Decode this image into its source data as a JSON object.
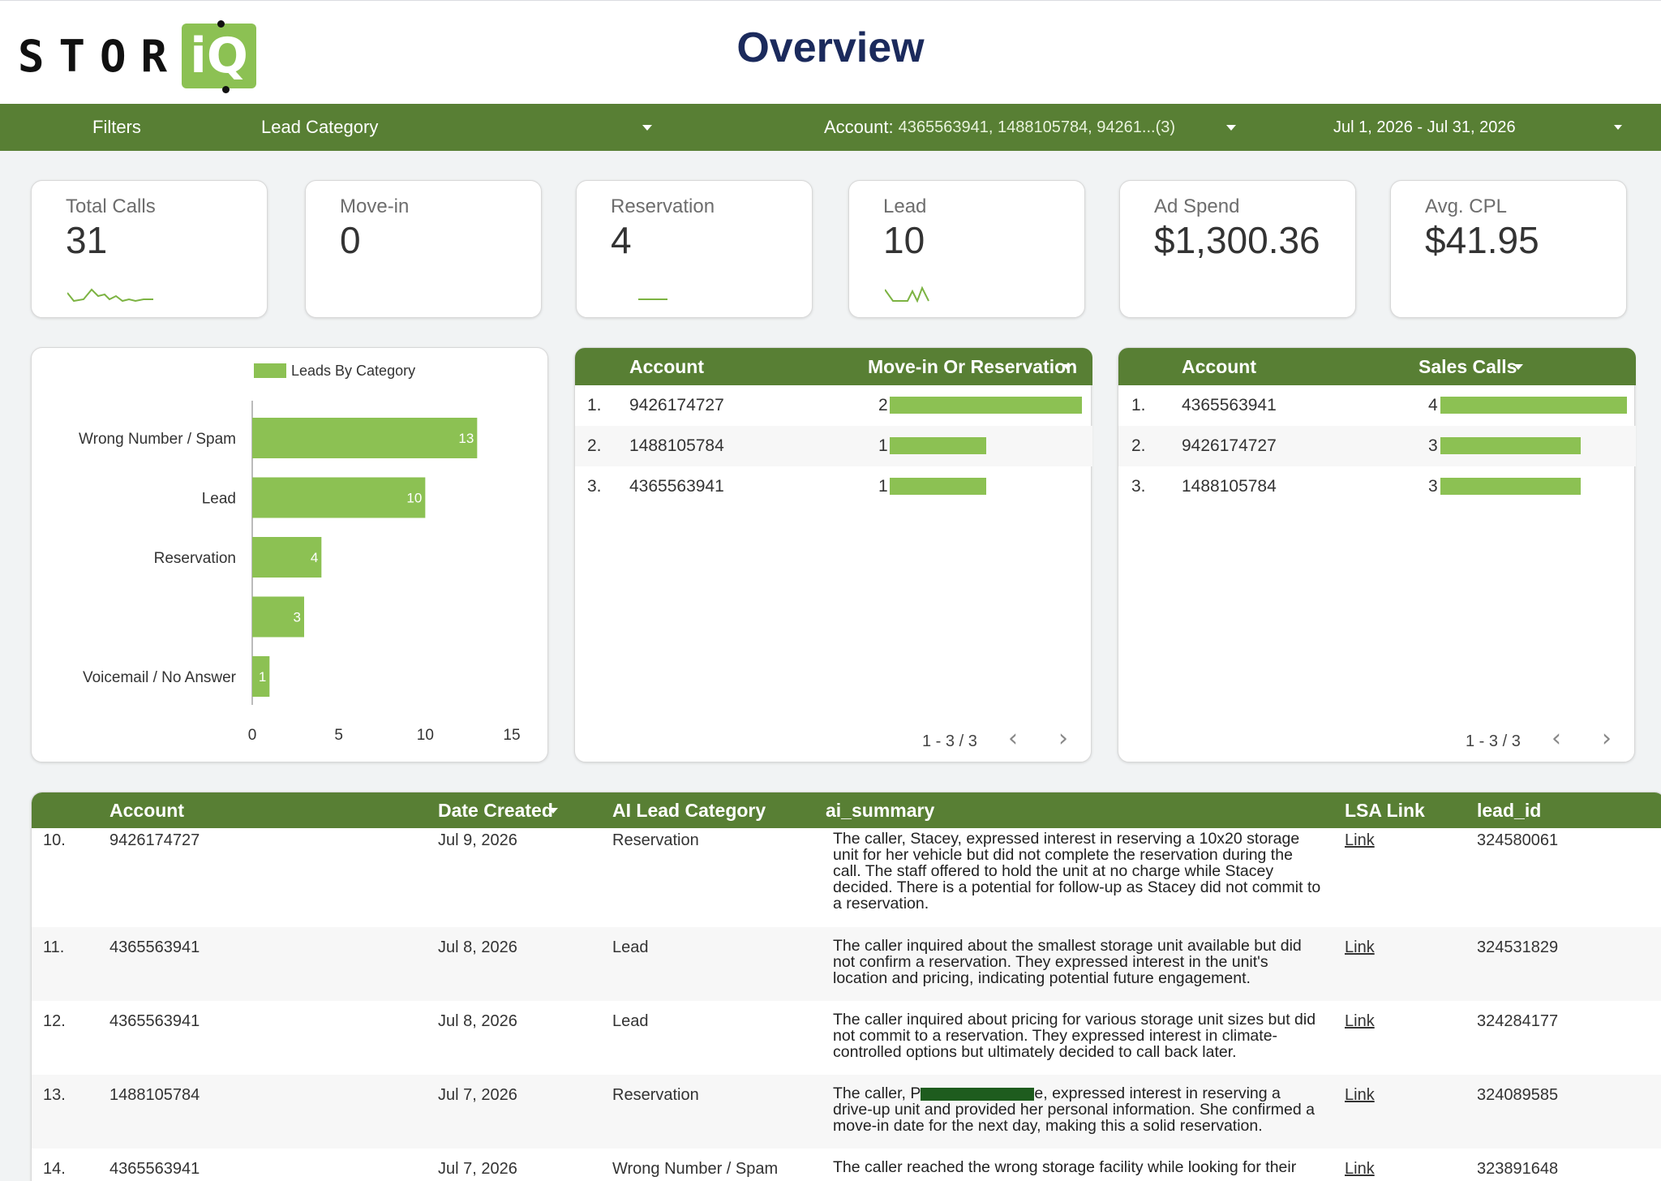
{
  "header": {
    "logo_text": "STOR",
    "logo_badge": "iQ",
    "title": "Overview"
  },
  "filters": {
    "label": "Filters",
    "category_label": "Lead Category",
    "account_label": "Account:",
    "account_value": "4365563941, 1488105784, 94261...(3)",
    "date_range": "Jul 1, 2026 - Jul 31, 2026"
  },
  "kpis": [
    {
      "label": "Total Calls",
      "value": "31"
    },
    {
      "label": "Move-in",
      "value": "0"
    },
    {
      "label": "Reservation",
      "value": "4"
    },
    {
      "label": "Lead",
      "value": "10"
    },
    {
      "label": "Ad Spend",
      "value": "$1,300.36"
    },
    {
      "label": "Avg. CPL",
      "value": "$41.95"
    }
  ],
  "colors": {
    "brand_green": "#587f34",
    "bar_green": "#8cc153",
    "title_navy": "#1b2a5c",
    "redaction": "#1e5c1e"
  },
  "chart_data": {
    "type": "bar",
    "orientation": "horizontal",
    "legend": "Leads By Category",
    "legend_position": "top",
    "categories": [
      "Wrong Number / Spam",
      "Lead",
      "Reservation",
      "",
      "Voicemail / No Answer"
    ],
    "values": [
      13,
      10,
      4,
      3,
      1
    ],
    "xlim": [
      0,
      15
    ],
    "xticks": [
      "0",
      "5",
      "10",
      "15"
    ],
    "grid": false
  },
  "move_in_table": {
    "col_account": "Account",
    "col_metric": "Move-in Or Reservation",
    "rows": [
      {
        "idx": "1.",
        "account": "9426174727",
        "value": "2",
        "fraction": 1.0
      },
      {
        "idx": "2.",
        "account": "1488105784",
        "value": "1",
        "fraction": 0.5
      },
      {
        "idx": "3.",
        "account": "4365563941",
        "value": "1",
        "fraction": 0.5
      }
    ],
    "pager": "1 - 3 / 3"
  },
  "sales_table": {
    "col_account": "Account",
    "col_metric": "Sales Calls",
    "rows": [
      {
        "idx": "1.",
        "account": "4365563941",
        "value": "4",
        "fraction": 1.0
      },
      {
        "idx": "2.",
        "account": "9426174727",
        "value": "3",
        "fraction": 0.75
      },
      {
        "idx": "3.",
        "account": "1488105784",
        "value": "3",
        "fraction": 0.75
      }
    ],
    "pager": "1 - 3 / 3"
  },
  "leads_table": {
    "columns": {
      "account": "Account",
      "date": "Date Created",
      "category": "AI Lead Category",
      "summary": "ai_summary",
      "lsa": "LSA Link",
      "lead_id": "lead_id"
    },
    "rows": [
      {
        "idx": "10.",
        "account": "9426174727",
        "date": "Jul 9, 2026",
        "category": "Reservation",
        "summary": "The caller, Stacey, expressed interest in reserving a 10x20 storage unit for her vehicle but did not complete the reservation during the call. The staff offered to hold the unit at no charge while Stacey decided. There is a potential for follow-up as Stacey did not commit to a reservation.",
        "lsa": "Link",
        "lead_id": "324580061"
      },
      {
        "idx": "11.",
        "account": "4365563941",
        "date": "Jul 8, 2026",
        "category": "Lead",
        "summary": "The caller inquired about the smallest storage unit available but did not confirm a reservation. They expressed interest in the unit's location and pricing, indicating potential future engagement.",
        "lsa": "Link",
        "lead_id": "324531829"
      },
      {
        "idx": "12.",
        "account": "4365563941",
        "date": "Jul 8, 2026",
        "category": "Lead",
        "summary": "The caller inquired about pricing for various storage unit sizes but did not commit to a reservation. They expressed interest in climate-controlled options but ultimately decided to call back later.",
        "lsa": "Link",
        "lead_id": "324284177"
      },
      {
        "idx": "13.",
        "account": "1488105784",
        "date": "Jul 7, 2026",
        "category": "Reservation",
        "summary_before": "The caller, P",
        "summary_after": "e, expressed interest in reserving a drive-up unit and provided her personal information. She confirmed a move-in date for the next day, making this a solid reservation.",
        "lsa": "Link",
        "lead_id": "324089585"
      },
      {
        "idx": "14.",
        "account": "4365563941",
        "date": "Jul 7, 2026",
        "category": "Wrong Number / Spam",
        "summary": "The caller reached the wrong storage facility while looking for their",
        "lsa": "Link",
        "lead_id": "323891648"
      }
    ]
  }
}
